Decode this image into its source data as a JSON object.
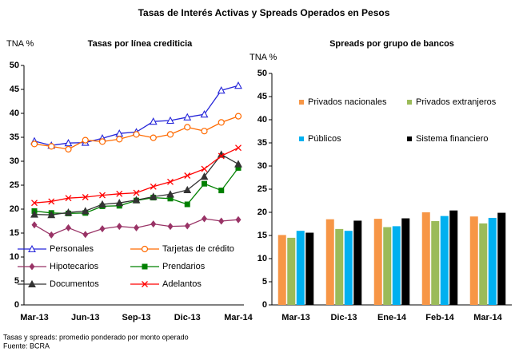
{
  "chart_data": [
    {
      "type": "line",
      "title": "Tasas de Interés Activas y Spreads Operados en Pesos",
      "subtitle": "Tasas por línea crediticia",
      "ylabel": "TNA %",
      "categories": [
        "Mar-13",
        null,
        null,
        "Jun-13",
        null,
        null,
        "Sep-13",
        null,
        null,
        "Dic-13",
        null,
        null,
        "Mar-14"
      ],
      "ylim": [
        0,
        50
      ],
      "yticks": [
        0,
        5,
        10,
        15,
        20,
        25,
        30,
        35,
        40,
        45,
        50
      ],
      "grid": false,
      "series": [
        {
          "name": "Personales",
          "color": "#2626d9",
          "marker": "triangle-open",
          "values": [
            34.2,
            33.3,
            33.8,
            33.9,
            34.8,
            35.8,
            36.1,
            38.3,
            38.5,
            39.2,
            39.8,
            44.8,
            45.8
          ]
        },
        {
          "name": "Tarjetas de crédito",
          "color": "#ff6a00",
          "marker": "circle-open",
          "values": [
            33.6,
            33.1,
            32.5,
            34.4,
            34.1,
            34.6,
            35.6,
            34.9,
            35.6,
            37.1,
            36.3,
            38.1,
            39.4
          ]
        },
        {
          "name": "Hipotecarios",
          "color": "#993366",
          "marker": "diamond",
          "values": [
            16.7,
            14.6,
            16.1,
            14.7,
            15.9,
            16.4,
            16.1,
            16.9,
            16.4,
            16.5,
            18.0,
            17.5,
            17.8
          ]
        },
        {
          "name": "Prendarios",
          "color": "#008000",
          "marker": "square",
          "values": [
            19.6,
            19.2,
            19.1,
            19.2,
            20.6,
            20.7,
            21.8,
            22.4,
            22.2,
            21.0,
            25.3,
            23.9,
            28.6
          ]
        },
        {
          "name": "Documentos",
          "color": "#333333",
          "marker": "triangle",
          "values": [
            18.9,
            18.8,
            19.3,
            19.6,
            21.0,
            21.3,
            21.9,
            22.6,
            23.1,
            24.0,
            26.8,
            31.4,
            29.4
          ]
        },
        {
          "name": "Adelantos",
          "color": "#ff0000",
          "marker": "x",
          "values": [
            21.3,
            21.6,
            22.3,
            22.5,
            22.9,
            23.2,
            23.4,
            24.7,
            25.7,
            27.0,
            28.4,
            31.1,
            32.8
          ]
        }
      ]
    },
    {
      "type": "bar",
      "subtitle": "Spreads por grupo de bancos",
      "ylabel": "TNA %",
      "categories": [
        "Mar-13",
        "Dic-13",
        "Ene-14",
        "Feb-14",
        "Mar-14"
      ],
      "ylim": [
        0,
        50
      ],
      "yticks": [
        0,
        5,
        10,
        15,
        20,
        25,
        30,
        35,
        40,
        45,
        50
      ],
      "grid": false,
      "series": [
        {
          "name": "Privados nacionales",
          "color": "#f79646",
          "values": [
            15.1,
            18.5,
            18.6,
            20.0,
            19.1
          ]
        },
        {
          "name": "Privados extranjeros",
          "color": "#9bbb59",
          "values": [
            14.5,
            16.4,
            16.8,
            18.1,
            17.6
          ]
        },
        {
          "name": "Públicos",
          "color": "#00b0f0",
          "values": [
            16.0,
            16.0,
            17.0,
            19.2,
            18.8
          ]
        },
        {
          "name": "Sistema financiero",
          "color": "#000000",
          "values": [
            15.6,
            18.2,
            18.7,
            20.4,
            19.9
          ]
        }
      ]
    }
  ],
  "footnotes": [
    "Tasas y spreads: promedio ponderado por monto operado",
    "Fuente: BCRA"
  ]
}
